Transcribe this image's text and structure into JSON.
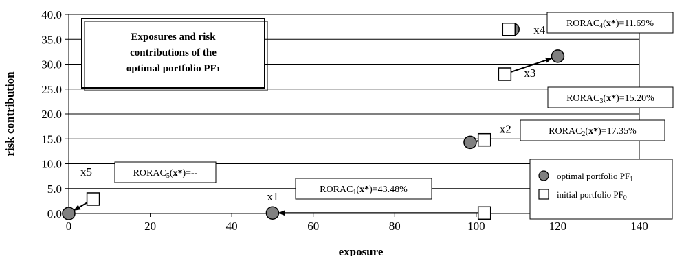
{
  "chart_data": {
    "type": "scatter",
    "title_lines": [
      "Exposures and risk",
      "contributions of the",
      "optimal portfolio PF₁"
    ],
    "xlabel": "exposure",
    "ylabel": "risk contribution",
    "xlim": [
      0,
      140
    ],
    "ylim": [
      0,
      40
    ],
    "xticks": [
      0,
      20,
      40,
      60,
      80,
      100,
      120,
      140
    ],
    "xtick_labels": [
      "0",
      "20",
      "40",
      "60",
      "80",
      "100",
      "120",
      "140"
    ],
    "yticks": [
      0,
      5,
      10,
      15,
      20,
      25,
      30,
      35,
      40
    ],
    "ytick_labels": [
      "0.0",
      "5.0",
      "10.0",
      "15.0",
      "20.0",
      "25.0",
      "30.0",
      "35.0",
      "40.0"
    ],
    "grid": "horizontal",
    "legend_position": "bottom-right",
    "series": [
      {
        "name": "optimal portfolio PF₁",
        "marker": "circle",
        "color": "#808080",
        "points": [
          {
            "label": "x1",
            "x": 50,
            "y": 0.1
          },
          {
            "label": "x2",
            "x": 98.5,
            "y": 14.3
          },
          {
            "label": "x3",
            "x": 120,
            "y": 31.6
          },
          {
            "label": "x4",
            "x": 109,
            "y": 37.0
          },
          {
            "label": "x5",
            "x": 0,
            "y": 0
          }
        ]
      },
      {
        "name": "initial portfolio PF₀",
        "marker": "square",
        "color": "#ffffff",
        "points": [
          {
            "label": "x1",
            "x": 102,
            "y": 0.1
          },
          {
            "label": "x2",
            "x": 102,
            "y": 14.8
          },
          {
            "label": "x3",
            "x": 107,
            "y": 28.0
          },
          {
            "label": "x4",
            "x": 108,
            "y": 37.0
          },
          {
            "label": "x5",
            "x": 6,
            "y": 2.9
          }
        ]
      }
    ],
    "annotations": [
      {
        "pre": "RORAC",
        "sub": "1",
        "mid": "(",
        "bold": "x*",
        "post": ")=43.48%"
      },
      {
        "pre": "RORAC",
        "sub": "2",
        "mid": "(",
        "bold": "x*",
        "post": ")=17.35%"
      },
      {
        "pre": "RORAC",
        "sub": "3",
        "mid": "(",
        "bold": "x*",
        "post": ")=15.20%"
      },
      {
        "pre": "RORAC",
        "sub": "4",
        "mid": "(",
        "bold": "x*",
        "post": ")=11.69%"
      },
      {
        "pre": "RORAC",
        "sub": "5",
        "mid": "(",
        "bold": "x*",
        "post": ")=--"
      }
    ],
    "point_labels": [
      "x1",
      "x2",
      "x3",
      "x4",
      "x5"
    ],
    "arrows": [
      {
        "from": "initial x1",
        "to": "optimal x1"
      },
      {
        "from": "initial x2",
        "to": "optimal x2"
      },
      {
        "from": "initial x3",
        "to": "optimal x3"
      },
      {
        "from": "initial x5",
        "to": "optimal x5"
      }
    ]
  }
}
